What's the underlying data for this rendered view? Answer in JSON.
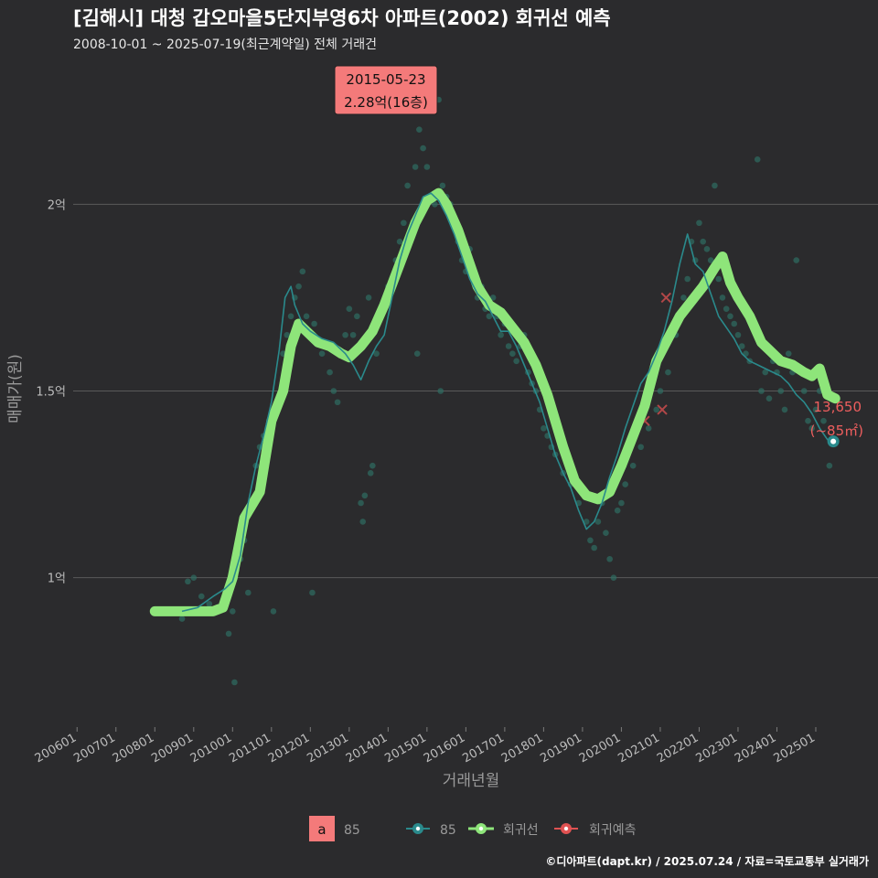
{
  "header": {
    "title": "[김해시] 대청 갑오마을5단지부영6차 아파트(2002) 회귀선 예측",
    "subtitle": "2008-10-01 ~ 2025-07-19(최근계약일) 전체 거래건"
  },
  "footer": {
    "credit": "©디아파트(dapt.kr) / 2025.07.24 / 자료=국토교통부 실거래가"
  },
  "colors": {
    "background": "#2b2b2d",
    "grid": "#5a5a5a",
    "line85": "#2a8a8c",
    "points": "#2f6e63",
    "regression": "#8ee57a",
    "forecast": "#e05252",
    "callout_bg": "#f47a7a",
    "end_label": "#ee5e5e"
  },
  "chart_data": {
    "type": "line",
    "title": "[김해시] 대청 갑오마을5단지부영6차 아파트(2002) 회귀선 예측",
    "subtitle": "2008-10-01 ~ 2025-07-19(최근계약일) 전체 거래건",
    "xlabel": "거래년월",
    "ylabel": "매매가(원)",
    "xlim": [
      2005.9,
      2026.6
    ],
    "ylim": [
      0.6,
      2.4
    ],
    "y_ticks": [
      {
        "value": 1.0,
        "label": "1억"
      },
      {
        "value": 1.5,
        "label": "1.5억"
      },
      {
        "value": 2.0,
        "label": "2억"
      }
    ],
    "x_ticks": [
      {
        "value": 2006,
        "label": "200601"
      },
      {
        "value": 2007,
        "label": "200701"
      },
      {
        "value": 2008,
        "label": "200801"
      },
      {
        "value": 2009,
        "label": "200901"
      },
      {
        "value": 2010,
        "label": "201001"
      },
      {
        "value": 2011,
        "label": "201101"
      },
      {
        "value": 2012,
        "label": "201201"
      },
      {
        "value": 2013,
        "label": "201301"
      },
      {
        "value": 2014,
        "label": "201401"
      },
      {
        "value": 2015,
        "label": "201501"
      },
      {
        "value": 2016,
        "label": "201601"
      },
      {
        "value": 2017,
        "label": "201701"
      },
      {
        "value": 2018,
        "label": "201801"
      },
      {
        "value": 2019,
        "label": "201901"
      },
      {
        "value": 2020,
        "label": "202001"
      },
      {
        "value": 2021,
        "label": "202101"
      },
      {
        "value": 2022,
        "label": "202201"
      },
      {
        "value": 2023,
        "label": "202301"
      },
      {
        "value": 2024,
        "label": "202401"
      },
      {
        "value": 2025,
        "label": "202501"
      }
    ],
    "series": [
      {
        "name": "회귀선",
        "x": [
          2008.0,
          2008.8,
          2009.5,
          2009.75,
          2010.0,
          2010.3,
          2010.7,
          2011.0,
          2011.3,
          2011.5,
          2011.7,
          2011.9,
          2012.2,
          2012.5,
          2012.8,
          2013.0,
          2013.3,
          2013.6,
          2013.9,
          2014.3,
          2014.7,
          2015.0,
          2015.3,
          2015.5,
          2015.8,
          2016.0,
          2016.3,
          2016.6,
          2016.9,
          2017.2,
          2017.5,
          2017.8,
          2018.1,
          2018.5,
          2018.8,
          2019.1,
          2019.4,
          2019.7,
          2020.0,
          2020.3,
          2020.6,
          2020.9,
          2021.2,
          2021.5,
          2021.8,
          2022.1,
          2022.4,
          2022.6,
          2022.8,
          2023.0,
          2023.3,
          2023.6,
          2023.8,
          2024.1,
          2024.4,
          2024.7,
          2024.9,
          2025.1,
          2025.3,
          2025.5
        ],
        "values": [
          0.91,
          0.91,
          0.91,
          0.92,
          1.0,
          1.16,
          1.23,
          1.42,
          1.5,
          1.62,
          1.68,
          1.66,
          1.63,
          1.62,
          1.6,
          1.59,
          1.62,
          1.66,
          1.73,
          1.84,
          1.95,
          2.01,
          2.03,
          2.0,
          1.93,
          1.87,
          1.78,
          1.73,
          1.71,
          1.67,
          1.63,
          1.57,
          1.49,
          1.35,
          1.26,
          1.22,
          1.21,
          1.23,
          1.3,
          1.38,
          1.46,
          1.58,
          1.64,
          1.7,
          1.74,
          1.78,
          1.83,
          1.86,
          1.79,
          1.75,
          1.7,
          1.63,
          1.61,
          1.58,
          1.57,
          1.55,
          1.54,
          1.56,
          1.49,
          1.48
        ]
      },
      {
        "name": "85",
        "x": [
          2008.7,
          2009.1,
          2009.5,
          2009.8,
          2010.0,
          2010.2,
          2010.4,
          2010.6,
          2010.8,
          2011.0,
          2011.2,
          2011.35,
          2011.5,
          2011.6,
          2011.8,
          2012.0,
          2012.3,
          2012.6,
          2012.9,
          2013.1,
          2013.3,
          2013.5,
          2013.7,
          2013.9,
          2014.1,
          2014.3,
          2014.5,
          2014.7,
          2014.9,
          2015.1,
          2015.3,
          2015.5,
          2015.7,
          2015.9,
          2016.1,
          2016.3,
          2016.5,
          2016.7,
          2016.9,
          2017.1,
          2017.3,
          2017.5,
          2017.7,
          2017.9,
          2018.1,
          2018.3,
          2018.5,
          2018.7,
          2018.9,
          2019.1,
          2019.3,
          2019.5,
          2019.7,
          2019.9,
          2020.1,
          2020.3,
          2020.5,
          2020.7,
          2020.9,
          2021.1,
          2021.3,
          2021.5,
          2021.7,
          2021.9,
          2022.1,
          2022.3,
          2022.5,
          2022.7,
          2022.9,
          2023.1,
          2023.3,
          2023.5,
          2023.7,
          2023.9,
          2024.1,
          2024.3,
          2024.5,
          2024.7,
          2024.9,
          2025.1,
          2025.3,
          2025.45
        ],
        "values": [
          0.91,
          0.92,
          0.95,
          0.97,
          0.99,
          1.06,
          1.2,
          1.3,
          1.38,
          1.47,
          1.61,
          1.75,
          1.78,
          1.73,
          1.68,
          1.66,
          1.64,
          1.63,
          1.6,
          1.57,
          1.53,
          1.58,
          1.62,
          1.65,
          1.75,
          1.85,
          1.92,
          1.97,
          2.02,
          2.03,
          2.01,
          1.97,
          1.92,
          1.86,
          1.8,
          1.76,
          1.74,
          1.7,
          1.66,
          1.66,
          1.62,
          1.57,
          1.52,
          1.47,
          1.4,
          1.33,
          1.28,
          1.24,
          1.18,
          1.13,
          1.15,
          1.2,
          1.27,
          1.33,
          1.4,
          1.46,
          1.52,
          1.55,
          1.6,
          1.66,
          1.74,
          1.84,
          1.92,
          1.84,
          1.82,
          1.76,
          1.7,
          1.67,
          1.64,
          1.6,
          1.58,
          1.57,
          1.56,
          1.55,
          1.54,
          1.52,
          1.49,
          1.47,
          1.44,
          1.4,
          1.37,
          1.365
        ]
      }
    ],
    "points_85": [
      [
        2008.7,
        0.89
      ],
      [
        2008.85,
        0.99
      ],
      [
        2009.0,
        1.0
      ],
      [
        2009.2,
        0.95
      ],
      [
        2009.4,
        0.93
      ],
      [
        2009.9,
        0.85
      ],
      [
        2010.0,
        0.91
      ],
      [
        2010.05,
        0.72
      ],
      [
        2010.1,
        1.02
      ],
      [
        2010.2,
        1.05
      ],
      [
        2010.3,
        1.1
      ],
      [
        2010.4,
        0.96
      ],
      [
        2010.5,
        1.2
      ],
      [
        2010.6,
        1.3
      ],
      [
        2010.7,
        1.35
      ],
      [
        2010.8,
        1.38
      ],
      [
        2010.9,
        1.4
      ],
      [
        2011.0,
        1.44
      ],
      [
        2011.05,
        0.91
      ],
      [
        2011.1,
        1.45
      ],
      [
        2011.2,
        1.48
      ],
      [
        2011.3,
        1.6
      ],
      [
        2011.4,
        1.65
      ],
      [
        2011.5,
        1.7
      ],
      [
        2011.6,
        1.75
      ],
      [
        2011.7,
        1.78
      ],
      [
        2011.8,
        1.82
      ],
      [
        2011.9,
        1.7
      ],
      [
        2012.0,
        1.65
      ],
      [
        2012.05,
        0.96
      ],
      [
        2012.1,
        1.68
      ],
      [
        2012.3,
        1.6
      ],
      [
        2012.4,
        1.62
      ],
      [
        2012.5,
        1.55
      ],
      [
        2012.6,
        1.5
      ],
      [
        2012.7,
        1.47
      ],
      [
        2012.8,
        1.6
      ],
      [
        2012.9,
        1.65
      ],
      [
        2013.0,
        1.72
      ],
      [
        2013.1,
        1.65
      ],
      [
        2013.2,
        1.7
      ],
      [
        2013.3,
        1.2
      ],
      [
        2013.35,
        1.15
      ],
      [
        2013.4,
        1.22
      ],
      [
        2013.5,
        1.75
      ],
      [
        2013.55,
        1.28
      ],
      [
        2013.6,
        1.3
      ],
      [
        2013.7,
        1.6
      ],
      [
        2013.8,
        1.7
      ],
      [
        2013.9,
        1.72
      ],
      [
        2014.0,
        1.78
      ],
      [
        2014.1,
        1.8
      ],
      [
        2014.2,
        1.85
      ],
      [
        2014.3,
        1.9
      ],
      [
        2014.4,
        1.95
      ],
      [
        2014.5,
        2.05
      ],
      [
        2014.6,
        1.92
      ],
      [
        2014.7,
        2.1
      ],
      [
        2014.75,
        1.6
      ],
      [
        2014.8,
        2.2
      ],
      [
        2014.9,
        2.15
      ],
      [
        2015.0,
        2.1
      ],
      [
        2015.1,
        2.25
      ],
      [
        2015.2,
        2.0
      ],
      [
        2015.3,
        2.28
      ],
      [
        2015.35,
        1.5
      ],
      [
        2015.4,
        2.05
      ],
      [
        2015.5,
        2.02
      ],
      [
        2015.6,
        2.0
      ],
      [
        2015.7,
        1.95
      ],
      [
        2015.8,
        1.9
      ],
      [
        2015.9,
        1.85
      ],
      [
        2016.0,
        1.82
      ],
      [
        2016.1,
        1.88
      ],
      [
        2016.2,
        1.8
      ],
      [
        2016.3,
        1.75
      ],
      [
        2016.4,
        1.78
      ],
      [
        2016.5,
        1.72
      ],
      [
        2016.6,
        1.7
      ],
      [
        2016.7,
        1.75
      ],
      [
        2016.8,
        1.7
      ],
      [
        2016.9,
        1.65
      ],
      [
        2017.0,
        1.68
      ],
      [
        2017.1,
        1.62
      ],
      [
        2017.2,
        1.6
      ],
      [
        2017.3,
        1.58
      ],
      [
        2017.4,
        1.62
      ],
      [
        2017.5,
        1.65
      ],
      [
        2017.6,
        1.55
      ],
      [
        2017.7,
        1.52
      ],
      [
        2017.8,
        1.5
      ],
      [
        2017.9,
        1.45
      ],
      [
        2018.0,
        1.4
      ],
      [
        2018.1,
        1.38
      ],
      [
        2018.2,
        1.35
      ],
      [
        2018.3,
        1.33
      ],
      [
        2018.5,
        1.28
      ],
      [
        2018.7,
        1.25
      ],
      [
        2018.9,
        1.2
      ],
      [
        2019.1,
        1.15
      ],
      [
        2019.2,
        1.1
      ],
      [
        2019.3,
        1.08
      ],
      [
        2019.4,
        1.15
      ],
      [
        2019.5,
        1.2
      ],
      [
        2019.6,
        1.12
      ],
      [
        2019.7,
        1.05
      ],
      [
        2019.8,
        1.0
      ],
      [
        2019.9,
        1.18
      ],
      [
        2020.0,
        1.2
      ],
      [
        2020.1,
        1.25
      ],
      [
        2020.3,
        1.3
      ],
      [
        2020.5,
        1.35
      ],
      [
        2020.7,
        1.4
      ],
      [
        2020.9,
        1.45
      ],
      [
        2021.0,
        1.5
      ],
      [
        2021.2,
        1.55
      ],
      [
        2021.4,
        1.65
      ],
      [
        2021.5,
        1.7
      ],
      [
        2021.6,
        1.75
      ],
      [
        2021.7,
        1.8
      ],
      [
        2021.8,
        1.9
      ],
      [
        2021.9,
        1.85
      ],
      [
        2022.0,
        1.95
      ],
      [
        2022.1,
        1.9
      ],
      [
        2022.2,
        1.88
      ],
      [
        2022.3,
        1.85
      ],
      [
        2022.4,
        2.05
      ],
      [
        2022.5,
        1.8
      ],
      [
        2022.6,
        1.75
      ],
      [
        2022.7,
        1.72
      ],
      [
        2022.8,
        1.7
      ],
      [
        2022.9,
        1.68
      ],
      [
        2023.0,
        1.65
      ],
      [
        2023.1,
        1.62
      ],
      [
        2023.2,
        1.6
      ],
      [
        2023.3,
        1.58
      ],
      [
        2023.5,
        2.12
      ],
      [
        2023.6,
        1.5
      ],
      [
        2023.7,
        1.55
      ],
      [
        2023.8,
        1.48
      ],
      [
        2023.9,
        1.58
      ],
      [
        2024.0,
        1.55
      ],
      [
        2024.1,
        1.5
      ],
      [
        2024.2,
        1.45
      ],
      [
        2024.3,
        1.6
      ],
      [
        2024.4,
        1.55
      ],
      [
        2024.5,
        1.85
      ],
      [
        2024.6,
        1.55
      ],
      [
        2024.7,
        1.5
      ],
      [
        2024.8,
        1.42
      ],
      [
        2024.9,
        1.4
      ],
      [
        2025.0,
        1.45
      ],
      [
        2025.1,
        1.5
      ],
      [
        2025.2,
        1.42
      ],
      [
        2025.35,
        1.3
      ]
    ],
    "forecast_points": [
      [
        2020.6,
        1.42
      ],
      [
        2021.05,
        1.45
      ],
      [
        2021.15,
        1.75
      ]
    ],
    "last_point": {
      "x": 2025.45,
      "y": 1.365
    },
    "callout": {
      "x": 2015.3,
      "y": 2.28,
      "date": "2015-05-23",
      "price": "2.28억(16층)"
    },
    "end_label": {
      "x": 2025.45,
      "y": 1.48,
      "price": "13,650",
      "area": "(~85㎡)"
    },
    "legend": {
      "key_box_text": "a",
      "area_label": "85",
      "items": [
        "85",
        "회귀선",
        "회귀예측"
      ]
    }
  }
}
